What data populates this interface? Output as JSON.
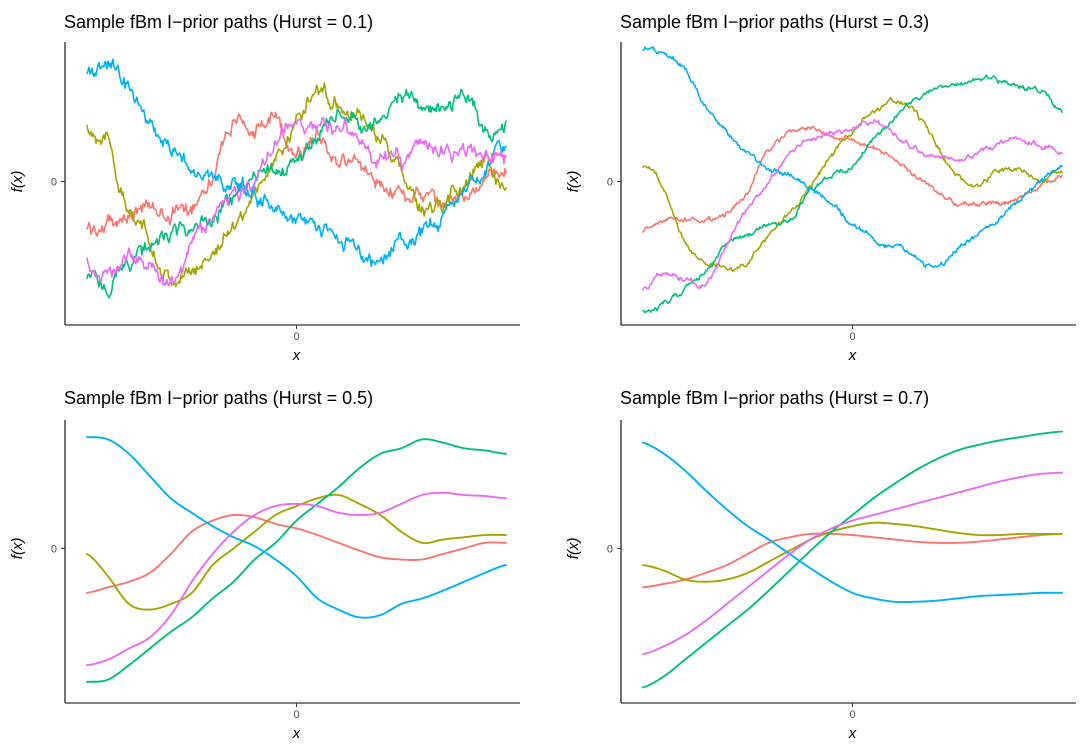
{
  "figure": {
    "colors": {
      "red": "#F8766D",
      "olive": "#A3A500",
      "green": "#00BF7D",
      "blue": "#00B0F6",
      "magenta": "#E76BF3"
    }
  },
  "chart_data": [
    {
      "type": "line",
      "title": "Sample fBm I−prior paths (Hurst = 0.1)",
      "xlabel": "x",
      "ylabel": "f(x)",
      "x_tick_labels": [
        "0"
      ],
      "y_tick_labels": [
        "0"
      ],
      "xlim": [
        -1,
        1
      ],
      "ylim": [
        -1.25,
        1.25
      ],
      "x": [
        -1.0,
        -0.9,
        -0.8,
        -0.7,
        -0.6,
        -0.5,
        -0.4,
        -0.3,
        -0.2,
        -0.1,
        0.0,
        0.1,
        0.2,
        0.3,
        0.4,
        0.5,
        0.6,
        0.7,
        0.8,
        0.9,
        1.0
      ],
      "roughness": 0.06,
      "series": [
        {
          "color": "red",
          "values": [
            -0.45,
            -0.4,
            -0.3,
            -0.25,
            -0.3,
            -0.2,
            0.1,
            0.55,
            0.5,
            0.55,
            0.3,
            0.4,
            0.2,
            0.15,
            0.0,
            -0.1,
            -0.15,
            -0.25,
            -0.1,
            0.0,
            0.05
          ]
        },
        {
          "color": "olive",
          "values": [
            0.5,
            0.35,
            -0.3,
            -0.55,
            -0.9,
            -0.85,
            -0.65,
            -0.4,
            -0.1,
            0.2,
            0.55,
            0.85,
            0.75,
            0.6,
            0.4,
            0.1,
            -0.3,
            -0.2,
            0.0,
            0.15,
            -0.05
          ]
        },
        {
          "color": "green",
          "values": [
            -0.9,
            -0.95,
            -0.75,
            -0.6,
            -0.5,
            -0.45,
            -0.35,
            -0.2,
            0.0,
            0.1,
            0.2,
            0.45,
            0.65,
            0.55,
            0.6,
            0.8,
            0.75,
            0.65,
            0.8,
            0.5,
            0.55
          ]
        },
        {
          "color": "blue",
          "values": [
            1.0,
            1.1,
            0.85,
            0.55,
            0.35,
            0.15,
            0.05,
            0.0,
            -0.15,
            -0.25,
            -0.35,
            -0.45,
            -0.55,
            -0.65,
            -0.75,
            -0.55,
            -0.45,
            -0.3,
            -0.15,
            0.1,
            0.35
          ]
        },
        {
          "color": "magenta",
          "values": [
            -0.75,
            -0.85,
            -0.7,
            -0.8,
            -0.95,
            -0.6,
            -0.35,
            -0.15,
            0.05,
            0.35,
            0.55,
            0.45,
            0.5,
            0.4,
            0.25,
            0.2,
            0.35,
            0.25,
            0.3,
            0.3,
            0.15
          ]
        }
      ]
    },
    {
      "type": "line",
      "title": "Sample fBm I−prior paths (Hurst = 0.3)",
      "xlabel": "x",
      "ylabel": "f(x)",
      "x_tick_labels": [
        "0"
      ],
      "y_tick_labels": [
        "0"
      ],
      "xlim": [
        -1,
        1
      ],
      "ylim": [
        -1.25,
        1.25
      ],
      "x": [
        -1.0,
        -0.9,
        -0.8,
        -0.7,
        -0.6,
        -0.5,
        -0.4,
        -0.3,
        -0.2,
        -0.1,
        0.0,
        0.1,
        0.2,
        0.3,
        0.4,
        0.5,
        0.6,
        0.7,
        0.8,
        0.9,
        1.0
      ],
      "roughness": 0.02,
      "series": [
        {
          "color": "red",
          "values": [
            -0.45,
            -0.35,
            -0.35,
            -0.35,
            -0.3,
            -0.1,
            0.3,
            0.45,
            0.5,
            0.4,
            0.4,
            0.3,
            0.2,
            0.05,
            -0.1,
            -0.2,
            -0.2,
            -0.2,
            -0.15,
            -0.05,
            0.05
          ]
        },
        {
          "color": "olive",
          "values": [
            0.15,
            -0.05,
            -0.55,
            -0.75,
            -0.8,
            -0.75,
            -0.5,
            -0.3,
            -0.05,
            0.25,
            0.45,
            0.65,
            0.75,
            0.65,
            0.35,
            0.05,
            -0.05,
            0.1,
            0.1,
            0.0,
            0.1
          ]
        },
        {
          "color": "green",
          "values": [
            -1.2,
            -1.15,
            -1.0,
            -0.85,
            -0.6,
            -0.5,
            -0.4,
            -0.35,
            -0.1,
            0.05,
            0.15,
            0.4,
            0.6,
            0.75,
            0.85,
            0.9,
            0.95,
            0.95,
            0.9,
            0.85,
            0.65
          ]
        },
        {
          "color": "blue",
          "values": [
            1.25,
            1.2,
            1.05,
            0.7,
            0.45,
            0.25,
            0.1,
            0.05,
            -0.05,
            -0.2,
            -0.4,
            -0.55,
            -0.6,
            -0.7,
            -0.8,
            -0.65,
            -0.5,
            -0.35,
            -0.15,
            0.0,
            0.15
          ]
        },
        {
          "color": "magenta",
          "values": [
            -1.0,
            -0.85,
            -0.9,
            -0.95,
            -0.6,
            -0.25,
            0.0,
            0.25,
            0.4,
            0.45,
            0.5,
            0.55,
            0.45,
            0.3,
            0.2,
            0.2,
            0.25,
            0.35,
            0.4,
            0.35,
            0.3
          ]
        }
      ]
    },
    {
      "type": "line",
      "title": "Sample fBm I−prior paths (Hurst = 0.5)",
      "xlabel": "x",
      "ylabel": "f(x)",
      "x_tick_labels": [
        "0"
      ],
      "y_tick_labels": [
        "0"
      ],
      "xlim": [
        -1,
        1
      ],
      "ylim": [
        -1.3,
        1.1
      ],
      "x": [
        -1.0,
        -0.9,
        -0.8,
        -0.7,
        -0.6,
        -0.5,
        -0.4,
        -0.3,
        -0.2,
        -0.1,
        0.0,
        0.1,
        0.2,
        0.3,
        0.4,
        0.5,
        0.6,
        0.7,
        0.8,
        0.9,
        1.0
      ],
      "roughness": 0.0,
      "series": [
        {
          "color": "red",
          "values": [
            -0.4,
            -0.35,
            -0.3,
            -0.22,
            -0.05,
            0.15,
            0.25,
            0.3,
            0.28,
            0.22,
            0.18,
            0.12,
            0.05,
            -0.02,
            -0.08,
            -0.1,
            -0.1,
            -0.05,
            0.0,
            0.05,
            0.05
          ]
        },
        {
          "color": "olive",
          "values": [
            -0.05,
            -0.25,
            -0.5,
            -0.55,
            -0.5,
            -0.4,
            -0.15,
            0.0,
            0.15,
            0.3,
            0.38,
            0.45,
            0.48,
            0.4,
            0.3,
            0.15,
            0.05,
            0.08,
            0.1,
            0.12,
            0.12
          ]
        },
        {
          "color": "green",
          "values": [
            -1.2,
            -1.18,
            -1.05,
            -0.9,
            -0.75,
            -0.62,
            -0.45,
            -0.3,
            -0.1,
            0.05,
            0.25,
            0.4,
            0.55,
            0.72,
            0.85,
            0.9,
            0.98,
            0.95,
            0.9,
            0.88,
            0.85
          ]
        },
        {
          "color": "blue",
          "values": [
            1.0,
            0.98,
            0.85,
            0.65,
            0.45,
            0.32,
            0.2,
            0.1,
            0.02,
            -0.1,
            -0.25,
            -0.45,
            -0.55,
            -0.62,
            -0.6,
            -0.5,
            -0.45,
            -0.38,
            -0.3,
            -0.22,
            -0.15
          ]
        },
        {
          "color": "magenta",
          "values": [
            -1.05,
            -1.0,
            -0.9,
            -0.8,
            -0.6,
            -0.3,
            -0.05,
            0.15,
            0.3,
            0.38,
            0.4,
            0.38,
            0.32,
            0.3,
            0.32,
            0.4,
            0.48,
            0.5,
            0.48,
            0.47,
            0.45
          ]
        }
      ]
    },
    {
      "type": "line",
      "title": "Sample fBm I−prior paths (Hurst = 0.7)",
      "xlabel": "x",
      "ylabel": "f(x)",
      "x_tick_labels": [
        "0"
      ],
      "y_tick_labels": [
        "0"
      ],
      "xlim": [
        -1,
        1
      ],
      "ylim": [
        -1.3,
        1.1
      ],
      "x": [
        -1.0,
        -0.9,
        -0.8,
        -0.7,
        -0.6,
        -0.5,
        -0.4,
        -0.3,
        -0.2,
        -0.1,
        0.0,
        0.1,
        0.2,
        0.3,
        0.4,
        0.5,
        0.6,
        0.7,
        0.8,
        0.9,
        1.0
      ],
      "roughness": 0.0,
      "series": [
        {
          "color": "red",
          "values": [
            -0.35,
            -0.32,
            -0.28,
            -0.22,
            -0.15,
            -0.05,
            0.05,
            0.1,
            0.13,
            0.13,
            0.12,
            0.1,
            0.08,
            0.06,
            0.05,
            0.05,
            0.06,
            0.08,
            0.1,
            0.12,
            0.13
          ]
        },
        {
          "color": "olive",
          "values": [
            -0.15,
            -0.2,
            -0.28,
            -0.3,
            -0.28,
            -0.22,
            -0.12,
            -0.02,
            0.08,
            0.15,
            0.2,
            0.23,
            0.22,
            0.2,
            0.17,
            0.14,
            0.12,
            0.12,
            0.13,
            0.13,
            0.13
          ]
        },
        {
          "color": "green",
          "values": [
            -1.25,
            -1.15,
            -1.0,
            -0.85,
            -0.7,
            -0.55,
            -0.38,
            -0.2,
            -0.02,
            0.15,
            0.3,
            0.45,
            0.58,
            0.7,
            0.8,
            0.88,
            0.93,
            0.97,
            1.0,
            1.03,
            1.05
          ]
        },
        {
          "color": "blue",
          "values": [
            0.95,
            0.85,
            0.7,
            0.52,
            0.35,
            0.2,
            0.08,
            -0.05,
            -0.18,
            -0.3,
            -0.4,
            -0.45,
            -0.48,
            -0.48,
            -0.47,
            -0.45,
            -0.43,
            -0.42,
            -0.41,
            -0.4,
            -0.4
          ]
        },
        {
          "color": "magenta",
          "values": [
            -0.95,
            -0.88,
            -0.78,
            -0.65,
            -0.5,
            -0.35,
            -0.2,
            -0.05,
            0.08,
            0.18,
            0.25,
            0.3,
            0.35,
            0.4,
            0.45,
            0.5,
            0.55,
            0.6,
            0.64,
            0.67,
            0.68
          ]
        }
      ]
    }
  ]
}
